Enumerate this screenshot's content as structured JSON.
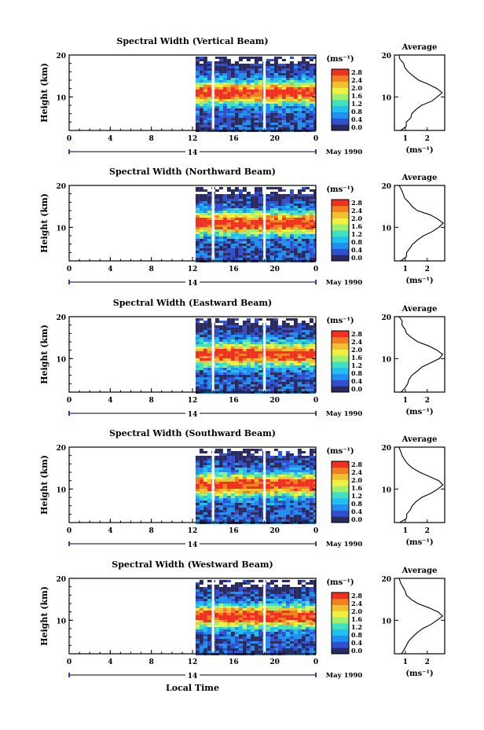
{
  "chart_data": {
    "type": "heatmap",
    "panels": [
      {
        "title": "Spectral Width (Vertical Beam)"
      },
      {
        "title": "Spectral Width (Northward Beam)"
      },
      {
        "title": "Spectral Width (Eastward Beam)"
      },
      {
        "title": "Spectral Width (Southward Beam)"
      },
      {
        "title": "Spectral Width (Westward Beam)"
      }
    ],
    "ylabel": "Height (km)",
    "xlabel": "Local Time",
    "y_ticks": [
      "20",
      "10"
    ],
    "ylim": [
      2,
      20
    ],
    "x_ticks": [
      "0",
      "4",
      "8",
      "12",
      "16",
      "20",
      "0"
    ],
    "xlim": [
      0,
      24
    ],
    "date_tick": "14",
    "date_label": "May 1990",
    "data_start_hour": 12.3,
    "gap_hours": [
      14.0,
      19.0
    ],
    "colorbar": {
      "unit": "(ms⁻¹)",
      "ticks": [
        "2.8",
        "2.4",
        "2.0",
        "1.6",
        "1.2",
        "0.8",
        "0.4",
        "0.0"
      ],
      "colors": [
        "#2a2a60",
        "#3050d0",
        "#2090f0",
        "#20c0f0",
        "#40e0c0",
        "#a0f070",
        "#f0f040",
        "#f0c030",
        "#f08020",
        "#f03020"
      ]
    },
    "average_profile": {
      "title": "Average",
      "xlabel": "(ms⁻¹)",
      "x_ticks": [
        "1",
        "2"
      ],
      "xlim": [
        0.5,
        2.8
      ],
      "heights": [
        2,
        3,
        4,
        5,
        6,
        7,
        8,
        9,
        10,
        11,
        12,
        13,
        14,
        15,
        16,
        17,
        18,
        19,
        20
      ],
      "values": [
        0.8,
        1.0,
        1.1,
        1.2,
        1.3,
        1.5,
        1.8,
        2.2,
        2.5,
        2.7,
        2.5,
        2.1,
        1.6,
        1.3,
        1.1,
        1.0,
        0.9,
        0.8,
        0.7
      ]
    }
  }
}
